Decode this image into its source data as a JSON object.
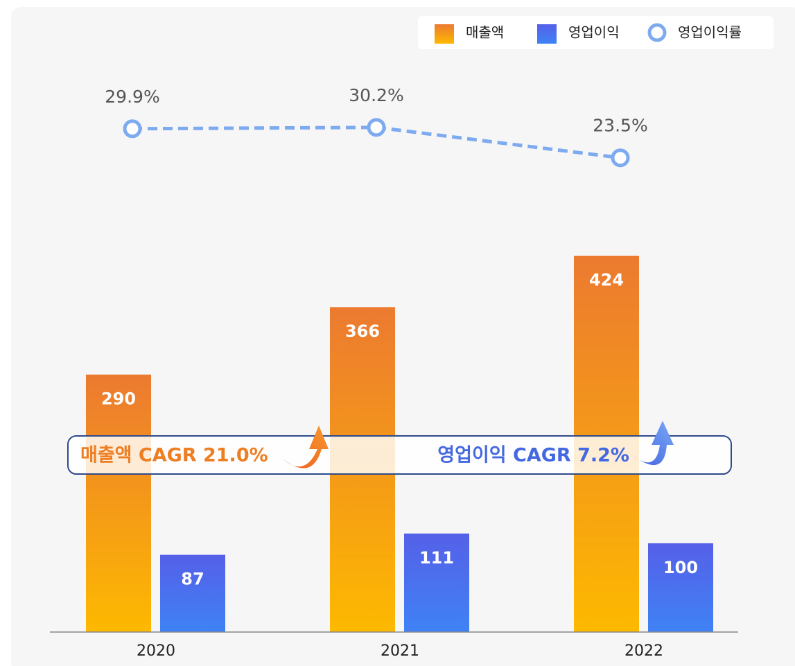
{
  "chart_data": {
    "type": "bar",
    "categories": [
      "2020",
      "2021",
      "2022"
    ],
    "series": [
      {
        "name": "매출액",
        "color": "#ec7a30",
        "values": [
          290,
          366,
          424
        ]
      },
      {
        "name": "영업이익",
        "color": "#5560e8",
        "values": [
          87,
          111,
          100
        ]
      },
      {
        "name": "영업이익률",
        "color": "#7eaaf0",
        "type": "line",
        "axis": "y2",
        "values": [
          29.9,
          30.2,
          23.5
        ],
        "value_labels": [
          "29.9%",
          "30.2%",
          "23.5%"
        ]
      }
    ],
    "ylim": [
      0,
      634
    ],
    "y2lim": [
      -81,
      43
    ],
    "legend": "top-right",
    "annotations": [
      "매출액 CAGR 21.0%",
      "영업이익 CAGR 7.2%"
    ]
  }
}
